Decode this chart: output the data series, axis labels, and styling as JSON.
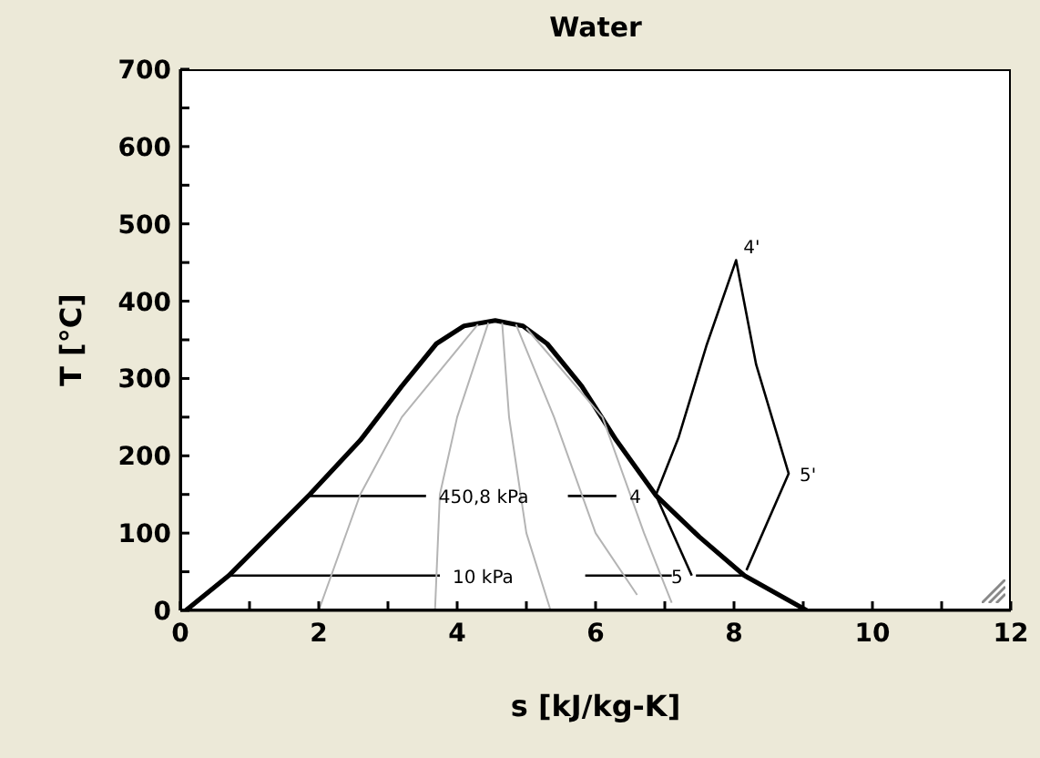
{
  "chart_data": {
    "type": "line",
    "title": "Water",
    "xlabel": "s [kJ/kg-K]",
    "ylabel": "T [°C]",
    "xlim": [
      0,
      12
    ],
    "xticks": [
      0,
      {
        "value": 1,
        "label": null
      },
      2,
      {
        "value": 3,
        "label": null
      },
      4,
      {
        "value": 5,
        "label": null
      },
      6,
      {
        "value": 7,
        "label": null
      },
      8,
      {
        "value": 9,
        "label": null
      },
      10,
      {
        "value": 11,
        "label": null
      },
      12
    ],
    "ylim": [
      0,
      700
    ],
    "yticks": [
      0,
      {
        "value": 50,
        "label": null
      },
      100,
      {
        "value": 150,
        "label": null
      },
      200,
      {
        "value": 250,
        "label": null
      },
      300,
      {
        "value": 350,
        "label": null
      },
      400,
      {
        "value": 450,
        "label": null
      },
      500,
      {
        "value": 550,
        "label": null
      },
      600,
      {
        "value": 650,
        "label": null
      },
      700
    ],
    "marker": "none",
    "line_style": "solid",
    "series": [
      {
        "color": "#000000",
        "x": [
          0.08,
          0.7,
          1.87,
          2.6,
          3.2,
          3.7,
          4.1,
          4.55,
          4.95,
          5.3,
          5.8,
          6.3,
          6.87,
          7.5,
          8.15,
          9.05
        ],
        "values": [
          0,
          45,
          150,
          220,
          290,
          345,
          368,
          375,
          368,
          345,
          290,
          220,
          149,
          95,
          45,
          0
        ]
      },
      {
        "color": "#000000",
        "x": [
          6.87,
          7.2,
          7.6,
          8.03,
          8.32,
          8.79,
          8.18
        ],
        "values": [
          149,
          224,
          342,
          453,
          318,
          177,
          52
        ]
      },
      {
        "color": "#000000",
        "x": [
          6.87,
          7.39
        ],
        "values": [
          149,
          45
        ]
      },
      {
        "color": "#000000",
        "x": [
          1.87,
          3.55,
          3.6,
          5.6,
          6.3
        ],
        "values": [
          148,
          148,
          null,
          148,
          148
        ]
      },
      {
        "color": "#000000",
        "x": [
          0.7,
          3.75,
          3.8,
          5.85,
          7.1,
          7.2,
          7.45,
          8.15
        ],
        "values": [
          45,
          45,
          null,
          45,
          45,
          null,
          45,
          45
        ]
      },
      {
        "color": "#b4b4b4",
        "x": [
          4.3,
          3.2,
          2.6,
          2.0
        ],
        "values": [
          370,
          250,
          150,
          0
        ]
      },
      {
        "color": "#b4b4b4",
        "x": [
          4.45,
          4.0,
          3.75,
          3.68
        ],
        "values": [
          372,
          250,
          150,
          0
        ]
      },
      {
        "color": "#b4b4b4",
        "x": [
          4.65,
          4.75,
          5.0,
          5.35
        ],
        "values": [
          372,
          250,
          100,
          0
        ]
      },
      {
        "color": "#b4b4b4",
        "x": [
          4.85,
          5.4,
          6.0,
          6.6
        ],
        "values": [
          370,
          250,
          100,
          20
        ]
      },
      {
        "color": "#b4b4b4",
        "x": [
          5.0,
          6.1,
          6.7,
          7.1
        ],
        "values": [
          365,
          250,
          100,
          10
        ]
      }
    ],
    "annotations": [
      {
        "text": "450,8 kPa",
        "x": 3.55,
        "y": 148
      },
      {
        "text": "10 kPa",
        "x": 3.75,
        "y": 45
      },
      {
        "text": "4",
        "x": 6.87,
        "y": 149
      },
      {
        "text": "4'",
        "x": 8.03,
        "y": 453
      },
      {
        "text": "5'",
        "x": 8.79,
        "y": 177
      },
      {
        "text": "5",
        "x": 7.39,
        "y": 45
      }
    ]
  }
}
